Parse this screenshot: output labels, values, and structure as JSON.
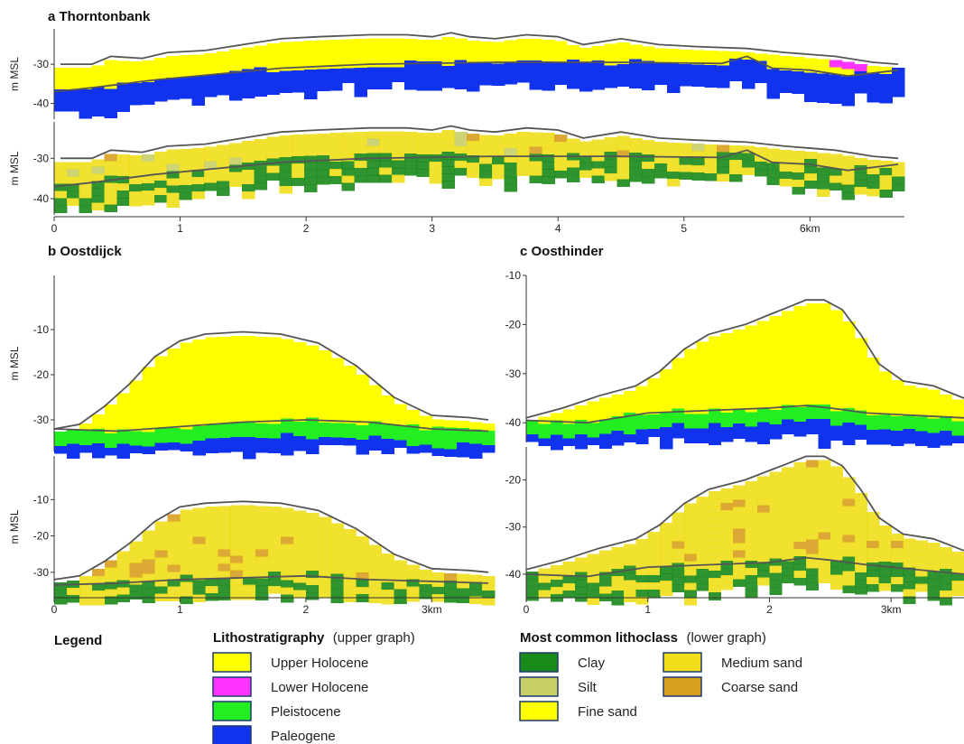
{
  "legend": {
    "title": "Legend",
    "litho": {
      "heading": "Lithostratigraphy",
      "sub": "(upper graph)",
      "items": [
        {
          "label": "Upper Holocene",
          "color": "#ffff00"
        },
        {
          "label": "Lower Holocene",
          "color": "#ff33ff"
        },
        {
          "label": "Pleistocene",
          "color": "#22ee22"
        },
        {
          "label": "Paleogene",
          "color": "#1133ee"
        }
      ]
    },
    "lithoclass": {
      "heading": "Most common lithoclass",
      "sub": "(lower graph)",
      "items": [
        {
          "label": "Clay",
          "color": "#1a8a1a"
        },
        {
          "label": "Silt",
          "color": "#c8cf66"
        },
        {
          "label": "Fine sand",
          "color": "#ffff00"
        },
        {
          "label": "Medium sand",
          "color": "#f0de1a"
        },
        {
          "label": "Coarse sand",
          "color": "#d8a020"
        }
      ]
    }
  },
  "chart_data": [
    {
      "type": "heatmap",
      "title": "a Thorntonbank",
      "ylabel": "m MSL",
      "x_ticks": [
        "0",
        "1",
        "2",
        "3",
        "4",
        "5",
        "6km"
      ],
      "xlim": [
        0,
        6.75
      ],
      "upper": {
        "y_ticks": [
          "-30",
          "-40"
        ],
        "ylim": [
          -44,
          -21
        ],
        "top_surface": [
          [
            0.05,
            -30
          ],
          [
            0.3,
            -30
          ],
          [
            0.45,
            -28
          ],
          [
            0.7,
            -28.5
          ],
          [
            0.9,
            -27
          ],
          [
            1.2,
            -26.5
          ],
          [
            1.5,
            -25
          ],
          [
            1.8,
            -23.5
          ],
          [
            2.1,
            -23
          ],
          [
            2.5,
            -22.5
          ],
          [
            2.8,
            -22.5
          ],
          [
            3.0,
            -23
          ],
          [
            3.15,
            -22
          ],
          [
            3.3,
            -23
          ],
          [
            3.5,
            -23.5
          ],
          [
            3.75,
            -22.5
          ],
          [
            4.0,
            -23
          ],
          [
            4.2,
            -25
          ],
          [
            4.5,
            -23.5
          ],
          [
            4.8,
            -25
          ],
          [
            5.1,
            -25.5
          ],
          [
            5.5,
            -26
          ],
          [
            5.8,
            -27
          ],
          [
            6.2,
            -28
          ],
          [
            6.5,
            -29.5
          ],
          [
            6.7,
            -30
          ]
        ],
        "base_holocene": [
          [
            0,
            -37
          ],
          [
            0.3,
            -36
          ],
          [
            0.8,
            -34
          ],
          [
            1.3,
            -32.5
          ],
          [
            1.8,
            -31
          ],
          [
            2.5,
            -30
          ],
          [
            3.5,
            -29.5
          ],
          [
            4.5,
            -29.5
          ],
          [
            5.3,
            -29.8
          ],
          [
            5.5,
            -28
          ],
          [
            5.7,
            -31
          ],
          [
            6.0,
            -31.5
          ],
          [
            6.3,
            -33
          ],
          [
            6.7,
            -31.5
          ]
        ],
        "units": [
          "Upper Holocene",
          "Lower Holocene",
          "Paleogene"
        ]
      },
      "lower": {
        "y_ticks": [
          "-30",
          "-40"
        ],
        "ylim": [
          -44,
          -21
        ],
        "top_surface": [
          [
            0.05,
            -30
          ],
          [
            0.3,
            -30
          ],
          [
            0.45,
            -28
          ],
          [
            0.7,
            -28.5
          ],
          [
            0.9,
            -27
          ],
          [
            1.2,
            -26.5
          ],
          [
            1.5,
            -25
          ],
          [
            1.8,
            -23.5
          ],
          [
            2.1,
            -23
          ],
          [
            2.5,
            -22.5
          ],
          [
            2.8,
            -22.5
          ],
          [
            3.0,
            -23
          ],
          [
            3.15,
            -22
          ],
          [
            3.3,
            -23
          ],
          [
            3.5,
            -23.5
          ],
          [
            3.75,
            -22.5
          ],
          [
            4.0,
            -23
          ],
          [
            4.2,
            -25
          ],
          [
            4.5,
            -23.5
          ],
          [
            4.8,
            -25
          ],
          [
            5.1,
            -25.5
          ],
          [
            5.5,
            -26
          ],
          [
            5.8,
            -27
          ],
          [
            6.2,
            -28
          ],
          [
            6.5,
            -29.5
          ],
          [
            6.7,
            -30
          ]
        ],
        "base_holocene": [
          [
            0,
            -37
          ],
          [
            0.3,
            -36
          ],
          [
            0.8,
            -34
          ],
          [
            1.3,
            -32.5
          ],
          [
            1.8,
            -31
          ],
          [
            2.5,
            -30
          ],
          [
            3.5,
            -29.5
          ],
          [
            4.5,
            -29.5
          ],
          [
            5.3,
            -29.8
          ],
          [
            5.5,
            -28
          ],
          [
            5.7,
            -31
          ],
          [
            6.0,
            -31.5
          ],
          [
            6.3,
            -33
          ],
          [
            6.7,
            -31.5
          ]
        ],
        "classes": [
          "Medium sand",
          "Clay",
          "Silt",
          "Coarse sand"
        ]
      }
    },
    {
      "type": "heatmap",
      "title": "b Oostdijck",
      "ylabel": "m MSL",
      "x_ticks": [
        "0",
        "1",
        "2",
        "3km"
      ],
      "xlim": [
        0,
        3.5
      ],
      "upper": {
        "y_ticks": [
          "-10",
          "-20",
          "-30"
        ],
        "ylim": [
          -37,
          2
        ],
        "top_surface": [
          [
            0,
            -32
          ],
          [
            0.2,
            -31
          ],
          [
            0.4,
            -27
          ],
          [
            0.6,
            -22
          ],
          [
            0.8,
            -16
          ],
          [
            1.0,
            -12.5
          ],
          [
            1.2,
            -11
          ],
          [
            1.5,
            -10.5
          ],
          [
            1.8,
            -11
          ],
          [
            2.1,
            -13
          ],
          [
            2.4,
            -18
          ],
          [
            2.7,
            -25
          ],
          [
            3.0,
            -29
          ],
          [
            3.3,
            -29.5
          ],
          [
            3.45,
            -30
          ]
        ],
        "base_holocene": [
          [
            0,
            -32
          ],
          [
            0.5,
            -32.5
          ],
          [
            1.0,
            -31.5
          ],
          [
            1.5,
            -30.5
          ],
          [
            2.0,
            -30
          ],
          [
            2.5,
            -30.5
          ],
          [
            3.0,
            -32
          ],
          [
            3.45,
            -32.5
          ]
        ],
        "units": [
          "Upper Holocene",
          "Pleistocene",
          "Paleogene"
        ]
      },
      "lower": {
        "y_ticks": [
          "-10",
          "-20",
          "-30"
        ],
        "ylim": [
          -37,
          2
        ],
        "top_surface": [
          [
            0,
            -32
          ],
          [
            0.2,
            -31
          ],
          [
            0.4,
            -27
          ],
          [
            0.6,
            -22
          ],
          [
            0.8,
            -16
          ],
          [
            1.0,
            -12
          ],
          [
            1.2,
            -11
          ],
          [
            1.5,
            -10.5
          ],
          [
            1.8,
            -11
          ],
          [
            2.1,
            -13
          ],
          [
            2.4,
            -18
          ],
          [
            2.7,
            -25
          ],
          [
            3.0,
            -29
          ],
          [
            3.3,
            -29.5
          ],
          [
            3.45,
            -30
          ]
        ],
        "base_holocene": [
          [
            0,
            -33.5
          ],
          [
            0.5,
            -33
          ],
          [
            1.0,
            -32
          ],
          [
            1.5,
            -31.5
          ],
          [
            2.0,
            -31
          ],
          [
            2.5,
            -32
          ],
          [
            3.0,
            -32.5
          ],
          [
            3.45,
            -33
          ]
        ],
        "classes": [
          "Medium sand",
          "Clay",
          "Coarse sand"
        ]
      }
    },
    {
      "type": "heatmap",
      "title": "c Oosthinder",
      "ylabel": "",
      "x_ticks": [
        "0",
        "1",
        "2",
        "3km"
      ],
      "xlim": [
        0,
        3.6
      ],
      "upper": {
        "y_ticks": [
          "-10",
          "-20",
          "-30",
          "-40"
        ],
        "ylim": [
          -44,
          -10
        ],
        "top_surface": [
          [
            0,
            -39
          ],
          [
            0.3,
            -37
          ],
          [
            0.6,
            -34.5
          ],
          [
            0.9,
            -32.5
          ],
          [
            1.1,
            -29.5
          ],
          [
            1.3,
            -25
          ],
          [
            1.5,
            -22
          ],
          [
            1.8,
            -20
          ],
          [
            2.0,
            -18
          ],
          [
            2.15,
            -16.5
          ],
          [
            2.3,
            -15
          ],
          [
            2.45,
            -15
          ],
          [
            2.6,
            -17
          ],
          [
            2.75,
            -22
          ],
          [
            2.9,
            -28
          ],
          [
            3.1,
            -31.5
          ],
          [
            3.35,
            -32.5
          ],
          [
            3.6,
            -35
          ]
        ],
        "base_holocene": [
          [
            0,
            -39.5
          ],
          [
            0.5,
            -40
          ],
          [
            1.0,
            -38
          ],
          [
            1.5,
            -37.5
          ],
          [
            2.0,
            -37
          ],
          [
            2.3,
            -36.5
          ],
          [
            2.5,
            -37
          ],
          [
            2.8,
            -38
          ],
          [
            3.2,
            -38.5
          ],
          [
            3.6,
            -39
          ]
        ],
        "units": [
          "Upper Holocene",
          "Pleistocene",
          "Paleogene"
        ]
      },
      "lower": {
        "y_ticks": [
          "-20",
          "-30",
          "-40"
        ],
        "ylim": [
          -45,
          -13
        ],
        "top_surface": [
          [
            0,
            -39
          ],
          [
            0.3,
            -37
          ],
          [
            0.6,
            -34.5
          ],
          [
            0.9,
            -32.5
          ],
          [
            1.1,
            -29.5
          ],
          [
            1.3,
            -25
          ],
          [
            1.5,
            -22
          ],
          [
            1.8,
            -20
          ],
          [
            2.0,
            -18
          ],
          [
            2.15,
            -16.5
          ],
          [
            2.3,
            -15
          ],
          [
            2.45,
            -15
          ],
          [
            2.6,
            -17
          ],
          [
            2.75,
            -22
          ],
          [
            2.9,
            -28
          ],
          [
            3.1,
            -31.5
          ],
          [
            3.35,
            -32.5
          ],
          [
            3.6,
            -35
          ]
        ],
        "base_holocene": [
          [
            0,
            -40
          ],
          [
            0.5,
            -40.5
          ],
          [
            1.0,
            -38.5
          ],
          [
            1.5,
            -38
          ],
          [
            2.0,
            -37.5
          ],
          [
            2.3,
            -36.5
          ],
          [
            2.5,
            -37
          ],
          [
            2.8,
            -38
          ],
          [
            3.2,
            -39
          ],
          [
            3.6,
            -40
          ]
        ],
        "classes": [
          "Medium sand",
          "Clay",
          "Coarse sand"
        ]
      }
    }
  ]
}
